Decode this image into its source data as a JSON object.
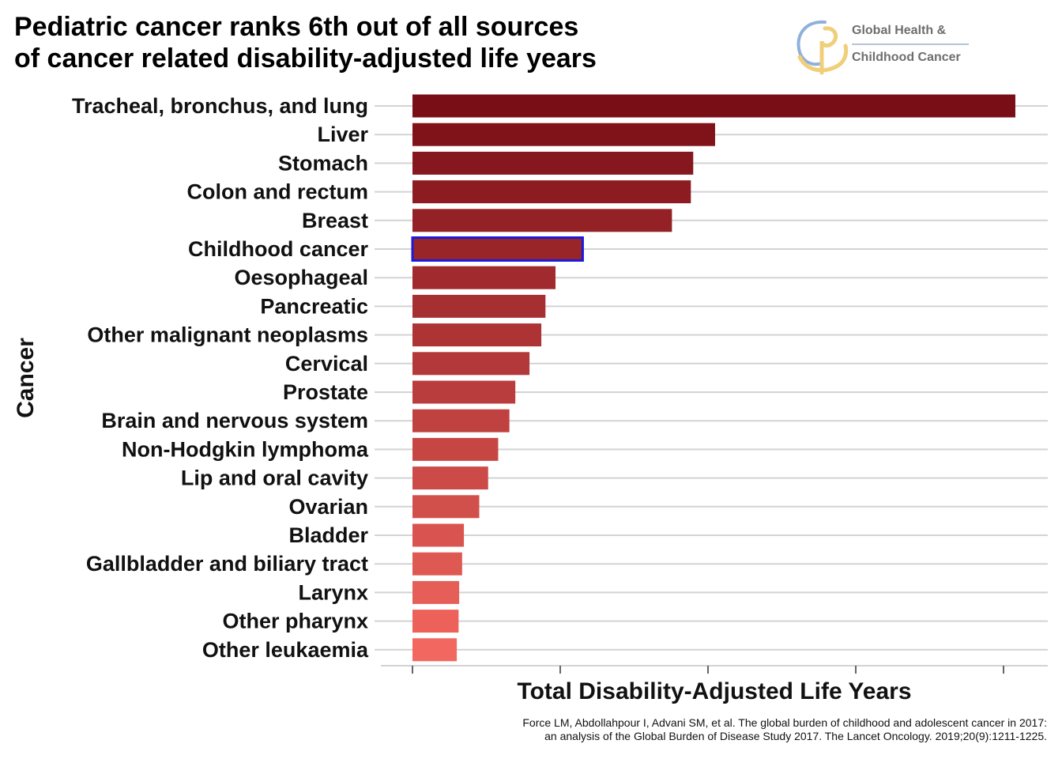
{
  "title": {
    "line1": "Pediatric cancer ranks 6th out of all sources",
    "line2": "of cancer related disability-adjusted life years"
  },
  "logo": {
    "line1": "Global Health &",
    "line2": "Childhood Cancer"
  },
  "source": {
    "line1": "Force LM, Abdollahpour I, Advani SM, et al. The global burden of childhood and adolescent cancer in 2017:",
    "line2": "an analysis of the Global Burden of Disease Study 2017. The Lancet Oncology. 2019;20(9):1211-1225."
  },
  "chart_data": {
    "type": "bar",
    "orientation": "horizontal",
    "xlabel": "Total Disability-Adjusted Life Years",
    "ylabel": "Cancer",
    "x_tick_labels_shown": false,
    "value_units": "relative (x-axis unlabeled; tick spacing = 25)",
    "xlim": [
      0,
      100
    ],
    "grid": "horizontal lines at each category",
    "highlight": {
      "category": "Childhood cancer",
      "outline_color": "#1a1adb"
    },
    "color_gradient": [
      "#7a0e16",
      "#f2675f"
    ],
    "categories": [
      "Tracheal, bronchus, and lung",
      "Liver",
      "Stomach",
      "Colon and rectum",
      "Breast",
      "Childhood cancer",
      "Oesophageal",
      "Pancreatic",
      "Other malignant neoplasms",
      "Cervical",
      "Prostate",
      "Brain and nervous system",
      "Non-Hodgkin lymphoma",
      "Lip and oral cavity",
      "Ovarian",
      "Bladder",
      "Gallbladder and biliary tract",
      "Larynx",
      "Other pharynx",
      "Other leukaemia"
    ],
    "values": [
      102,
      51.2,
      47.5,
      47.1,
      43.9,
      28.8,
      24.2,
      22.5,
      21.8,
      19.8,
      17.4,
      16.4,
      14.5,
      12.8,
      11.3,
      8.7,
      8.4,
      7.9,
      7.8,
      7.5
    ]
  }
}
